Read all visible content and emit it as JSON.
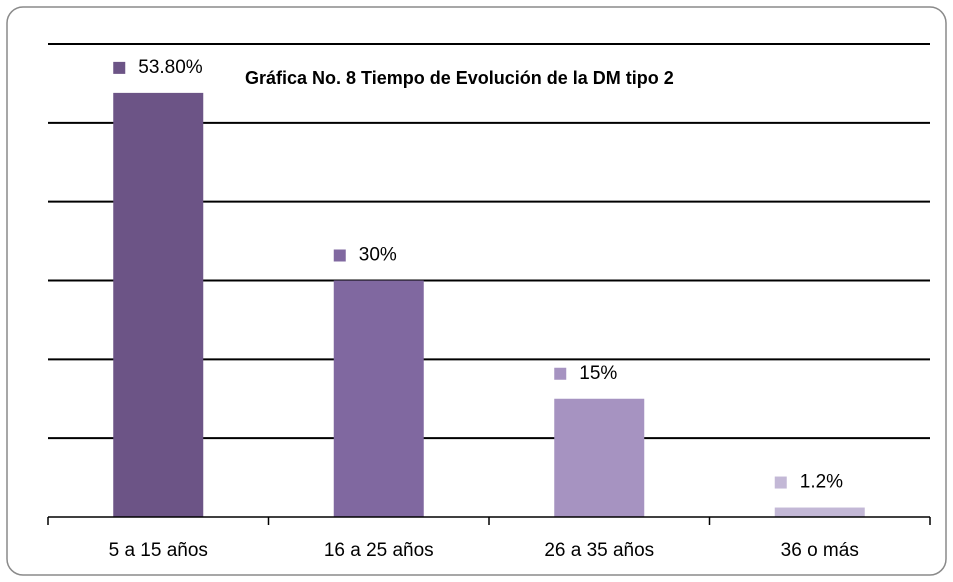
{
  "chart_data": {
    "type": "bar",
    "title": "Gráfica No. 8 Tiempo de Evolución de la DM tipo 2",
    "categories": [
      "5 a 15 años",
      "16 a 25 años",
      "26 a 35 años",
      "36 o más"
    ],
    "values": [
      53.8,
      30,
      15,
      1.2
    ],
    "value_labels": [
      "53.80%",
      "30%",
      "15%",
      "1.2%"
    ],
    "colors": [
      "#6c5486",
      "#8068a0",
      "#a693c1",
      "#c3b8d6"
    ],
    "ylim": [
      0,
      60
    ],
    "yticks": [
      0,
      10,
      20,
      30,
      40,
      50,
      60
    ],
    "grid": true
  }
}
